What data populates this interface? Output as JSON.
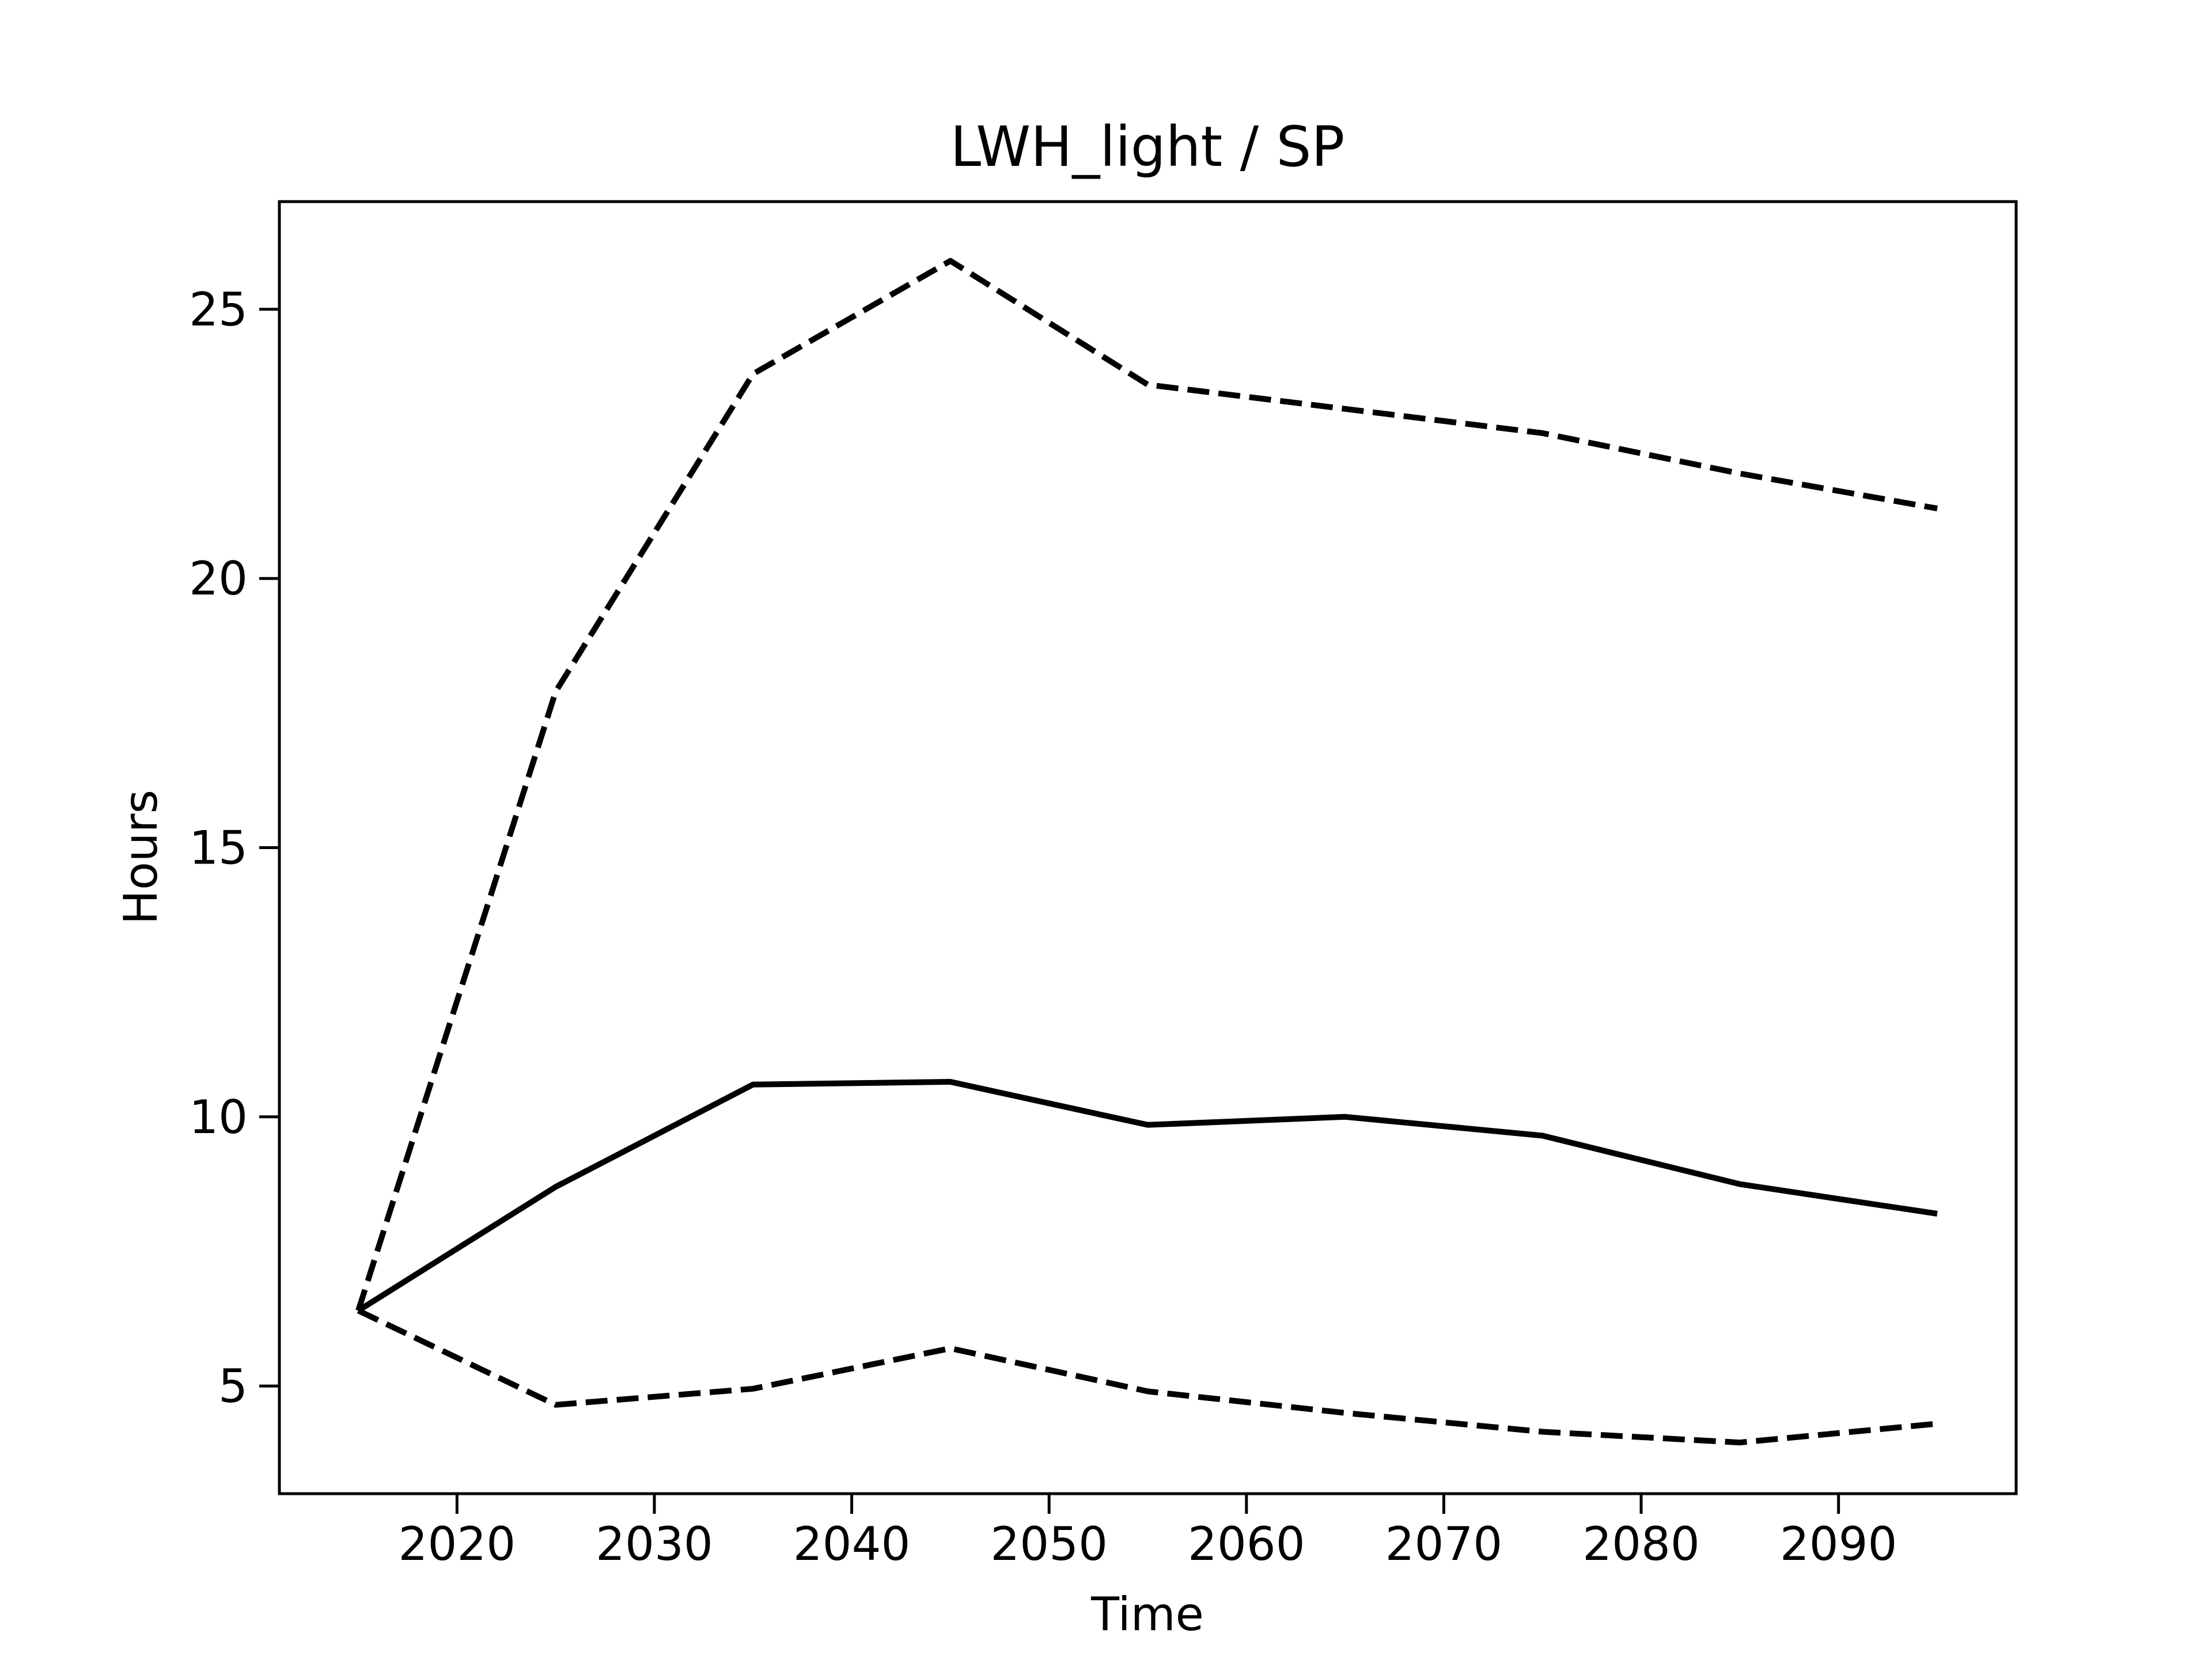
{
  "chart_data": {
    "type": "line",
    "title": "LWH_light / SP",
    "xlabel": "Time",
    "ylabel": "Hours",
    "xlim": [
      2011,
      2099
    ],
    "ylim": [
      3,
      27
    ],
    "xticks": [
      2020,
      2030,
      2040,
      2050,
      2060,
      2070,
      2080,
      2090
    ],
    "yticks": [
      5,
      10,
      15,
      20,
      25
    ],
    "x": [
      2015,
      2025,
      2035,
      2045,
      2055,
      2065,
      2075,
      2085,
      2095
    ],
    "series": [
      {
        "style": "solid",
        "color": "#000000",
        "values": [
          6.4,
          8.7,
          10.6,
          10.65,
          9.85,
          10.0,
          9.65,
          8.75,
          8.2
        ]
      },
      {
        "style": "dashed",
        "color": "#000000",
        "values": [
          6.4,
          17.9,
          23.8,
          25.9,
          23.6,
          23.15,
          22.7,
          21.95,
          21.3
        ]
      },
      {
        "style": "dashed",
        "color": "#000000",
        "values": [
          6.4,
          4.65,
          4.95,
          5.7,
          4.9,
          4.5,
          4.15,
          3.95,
          4.3
        ]
      }
    ],
    "grid": false,
    "legend": "none"
  }
}
